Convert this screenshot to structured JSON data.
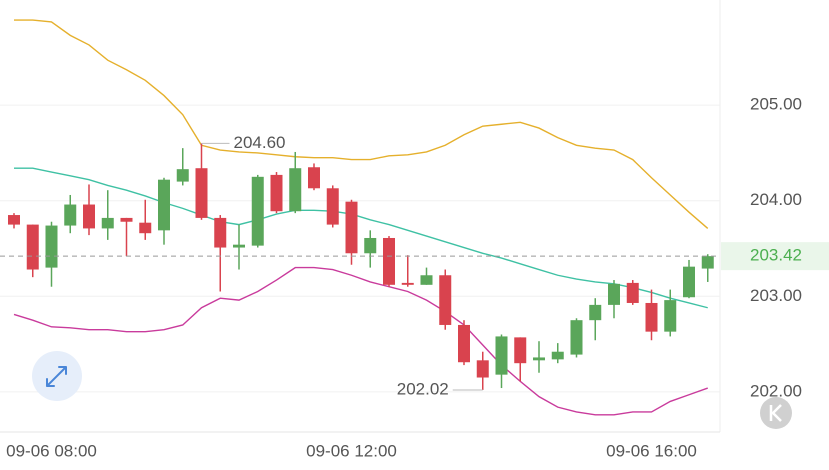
{
  "chart_data": {
    "type": "candlestick",
    "categories": [
      null,
      null,
      "09-06 08:00",
      null,
      null,
      null,
      null,
      null,
      null,
      null,
      null,
      null,
      null,
      null,
      null,
      null,
      null,
      null,
      "09-06 12:00",
      null,
      null,
      null,
      null,
      null,
      null,
      null,
      null,
      null,
      null,
      null,
      null,
      null,
      null,
      null,
      "09-06 16:00",
      null,
      null,
      null
    ],
    "open": [
      203.85,
      203.75,
      203.3,
      203.74,
      203.96,
      203.71,
      203.82,
      203.77,
      203.69,
      204.2,
      204.34,
      203.82,
      203.51,
      203.53,
      204.27,
      203.89,
      204.35,
      204.13,
      203.99,
      203.45,
      203.61,
      203.14,
      203.12,
      203.22,
      202.7,
      202.33,
      202.18,
      202.57,
      202.33,
      202.34,
      202.39,
      202.75,
      202.91,
      203.14,
      202.93,
      202.63,
      202.99,
      203.29
    ],
    "high": [
      203.87,
      203.75,
      203.78,
      204.06,
      204.17,
      204.11,
      203.82,
      204.01,
      204.24,
      204.55,
      204.6,
      203.85,
      203.75,
      204.27,
      204.3,
      204.51,
      204.39,
      204.16,
      204.01,
      203.69,
      203.63,
      203.43,
      203.3,
      203.28,
      202.75,
      202.42,
      202.6,
      202.57,
      202.53,
      202.51,
      202.77,
      202.98,
      203.17,
      203.17,
      203.07,
      203.07,
      203.38,
      203.44
    ],
    "low": [
      203.71,
      203.2,
      203.1,
      203.66,
      203.64,
      203.59,
      203.42,
      203.59,
      203.54,
      204.16,
      203.8,
      203.05,
      203.28,
      203.51,
      203.87,
      203.87,
      204.11,
      203.72,
      203.33,
      203.3,
      203.1,
      203.1,
      203.12,
      202.65,
      202.28,
      202.02,
      202.04,
      202.11,
      202.2,
      202.3,
      202.36,
      202.54,
      202.77,
      202.91,
      202.54,
      202.58,
      202.98,
      203.15
    ],
    "close": [
      203.75,
      203.28,
      203.74,
      203.96,
      203.71,
      203.82,
      203.78,
      203.66,
      204.22,
      204.33,
      203.82,
      203.51,
      203.54,
      204.25,
      203.89,
      204.34,
      204.13,
      203.75,
      203.45,
      203.61,
      203.12,
      203.12,
      203.22,
      202.7,
      202.31,
      202.15,
      202.58,
      202.3,
      202.36,
      202.42,
      202.75,
      202.91,
      203.13,
      202.93,
      202.63,
      202.96,
      203.31,
      203.42
    ],
    "up_color": "#5aa65a",
    "down_color": "#d9434e",
    "bands": [
      {
        "color": "#e5b02c",
        "values": [
          205.89,
          205.89,
          205.87,
          205.73,
          205.63,
          205.47,
          205.37,
          205.26,
          205.1,
          204.9,
          204.58,
          204.53,
          204.51,
          204.5,
          204.48,
          204.46,
          204.45,
          204.45,
          204.43,
          204.43,
          204.47,
          204.48,
          204.51,
          204.58,
          204.69,
          204.78,
          204.8,
          204.82,
          204.76,
          204.66,
          204.58,
          204.55,
          204.53,
          204.43,
          204.24,
          204.06,
          203.88,
          203.71
        ]
      },
      {
        "color": "#3fc1a4",
        "values": [
          204.34,
          204.34,
          204.3,
          204.26,
          204.22,
          204.16,
          204.11,
          204.05,
          203.98,
          203.92,
          203.85,
          203.78,
          203.75,
          203.8,
          203.86,
          203.9,
          203.9,
          203.89,
          203.86,
          203.8,
          203.75,
          203.69,
          203.63,
          203.57,
          203.51,
          203.45,
          203.4,
          203.34,
          203.28,
          203.22,
          203.18,
          203.15,
          203.13,
          203.09,
          203.04,
          202.98,
          202.93,
          202.88
        ]
      },
      {
        "color": "#c93b9c",
        "values": [
          202.81,
          202.75,
          202.68,
          202.67,
          202.65,
          202.65,
          202.63,
          202.63,
          202.65,
          202.7,
          202.88,
          202.98,
          202.96,
          203.05,
          203.17,
          203.3,
          203.3,
          203.28,
          203.22,
          203.15,
          203.1,
          203.05,
          202.96,
          202.84,
          202.7,
          202.49,
          202.28,
          202.11,
          201.95,
          201.84,
          201.79,
          201.76,
          201.76,
          201.79,
          201.79,
          201.9,
          201.97,
          202.04
        ]
      }
    ],
    "ylim": [
      201.58,
      206.1
    ],
    "yticks": [
      {
        "value": 202,
        "label": "202.00"
      },
      {
        "value": 203,
        "label": "203.00"
      },
      {
        "value": 204,
        "label": "204.00"
      },
      {
        "value": 205,
        "label": "205.00"
      }
    ],
    "grid": true,
    "current_price": 203.42,
    "current_color": "#4caf50",
    "max_annotation": {
      "value": 204.6,
      "label": "204.60"
    },
    "min_annotation": {
      "value": 202.02,
      "label": "202.02"
    }
  }
}
